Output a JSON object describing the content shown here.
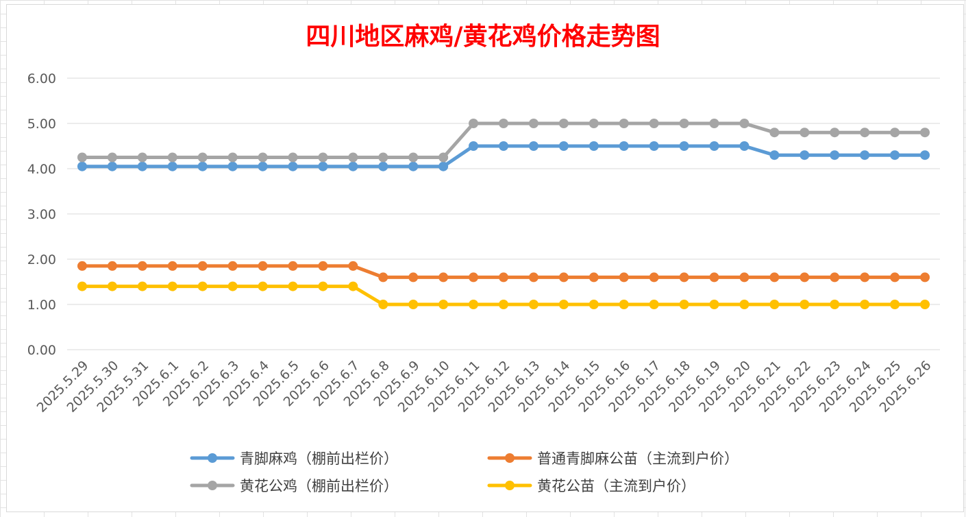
{
  "chart_data": {
    "type": "line",
    "title": "四川地区麻鸡/黄花鸡价格走势图",
    "xlabel": "",
    "ylabel": "",
    "ylim": [
      0,
      6
    ],
    "yticks": [
      "0.00",
      "1.00",
      "2.00",
      "3.00",
      "4.00",
      "5.00",
      "6.00"
    ],
    "grid": true,
    "legend_position": "bottom",
    "categories": [
      "2025.5.29",
      "2025.5.30",
      "2025.5.31",
      "2025.6.1",
      "2025.6.2",
      "2025.6.3",
      "2025.6.4",
      "2025.6.5",
      "2025.6.6",
      "2025.6.7",
      "2025.6.8",
      "2025.6.9",
      "2025.6.10",
      "2025.6.11",
      "2025.6.12",
      "2025.6.13",
      "2025.6.14",
      "2025.6.15",
      "2025.6.16",
      "2025.6.17",
      "2025.6.18",
      "2025.6.19",
      "2025.6.20",
      "2025.6.21",
      "2025.6.22",
      "2025.6.23",
      "2025.6.24",
      "2025.6.25",
      "2025.6.26"
    ],
    "series": [
      {
        "name": "青脚麻鸡（棚前出栏价）",
        "color": "#5b9bd5",
        "values": [
          4.05,
          4.05,
          4.05,
          4.05,
          4.05,
          4.05,
          4.05,
          4.05,
          4.05,
          4.05,
          4.05,
          4.05,
          4.05,
          4.5,
          4.5,
          4.5,
          4.5,
          4.5,
          4.5,
          4.5,
          4.5,
          4.5,
          4.5,
          4.3,
          4.3,
          4.3,
          4.3,
          4.3,
          4.3
        ]
      },
      {
        "name": "普通青脚麻公苗（主流到户价）",
        "color": "#ed7d31",
        "values": [
          1.85,
          1.85,
          1.85,
          1.85,
          1.85,
          1.85,
          1.85,
          1.85,
          1.85,
          1.85,
          1.6,
          1.6,
          1.6,
          1.6,
          1.6,
          1.6,
          1.6,
          1.6,
          1.6,
          1.6,
          1.6,
          1.6,
          1.6,
          1.6,
          1.6,
          1.6,
          1.6,
          1.6,
          1.6
        ]
      },
      {
        "name": "黄花公鸡（棚前出栏价）",
        "color": "#a5a5a5",
        "values": [
          4.25,
          4.25,
          4.25,
          4.25,
          4.25,
          4.25,
          4.25,
          4.25,
          4.25,
          4.25,
          4.25,
          4.25,
          4.25,
          5.0,
          5.0,
          5.0,
          5.0,
          5.0,
          5.0,
          5.0,
          5.0,
          5.0,
          5.0,
          4.8,
          4.8,
          4.8,
          4.8,
          4.8,
          4.8
        ]
      },
      {
        "name": "黄花公苗（主流到户价）",
        "color": "#ffc000",
        "values": [
          1.4,
          1.4,
          1.4,
          1.4,
          1.4,
          1.4,
          1.4,
          1.4,
          1.4,
          1.4,
          1.0,
          1.0,
          1.0,
          1.0,
          1.0,
          1.0,
          1.0,
          1.0,
          1.0,
          1.0,
          1.0,
          1.0,
          1.0,
          1.0,
          1.0,
          1.0,
          1.0,
          1.0,
          1.0
        ]
      }
    ]
  }
}
